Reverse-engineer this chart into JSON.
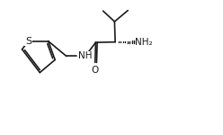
{
  "background_color": "#ffffff",
  "line_color": "#1a1a1a",
  "text_color": "#1a1a1a",
  "fig_width": 2.48,
  "fig_height": 1.5,
  "dpi": 100,
  "xlim": [
    0,
    10
  ],
  "ylim": [
    0,
    6
  ]
}
